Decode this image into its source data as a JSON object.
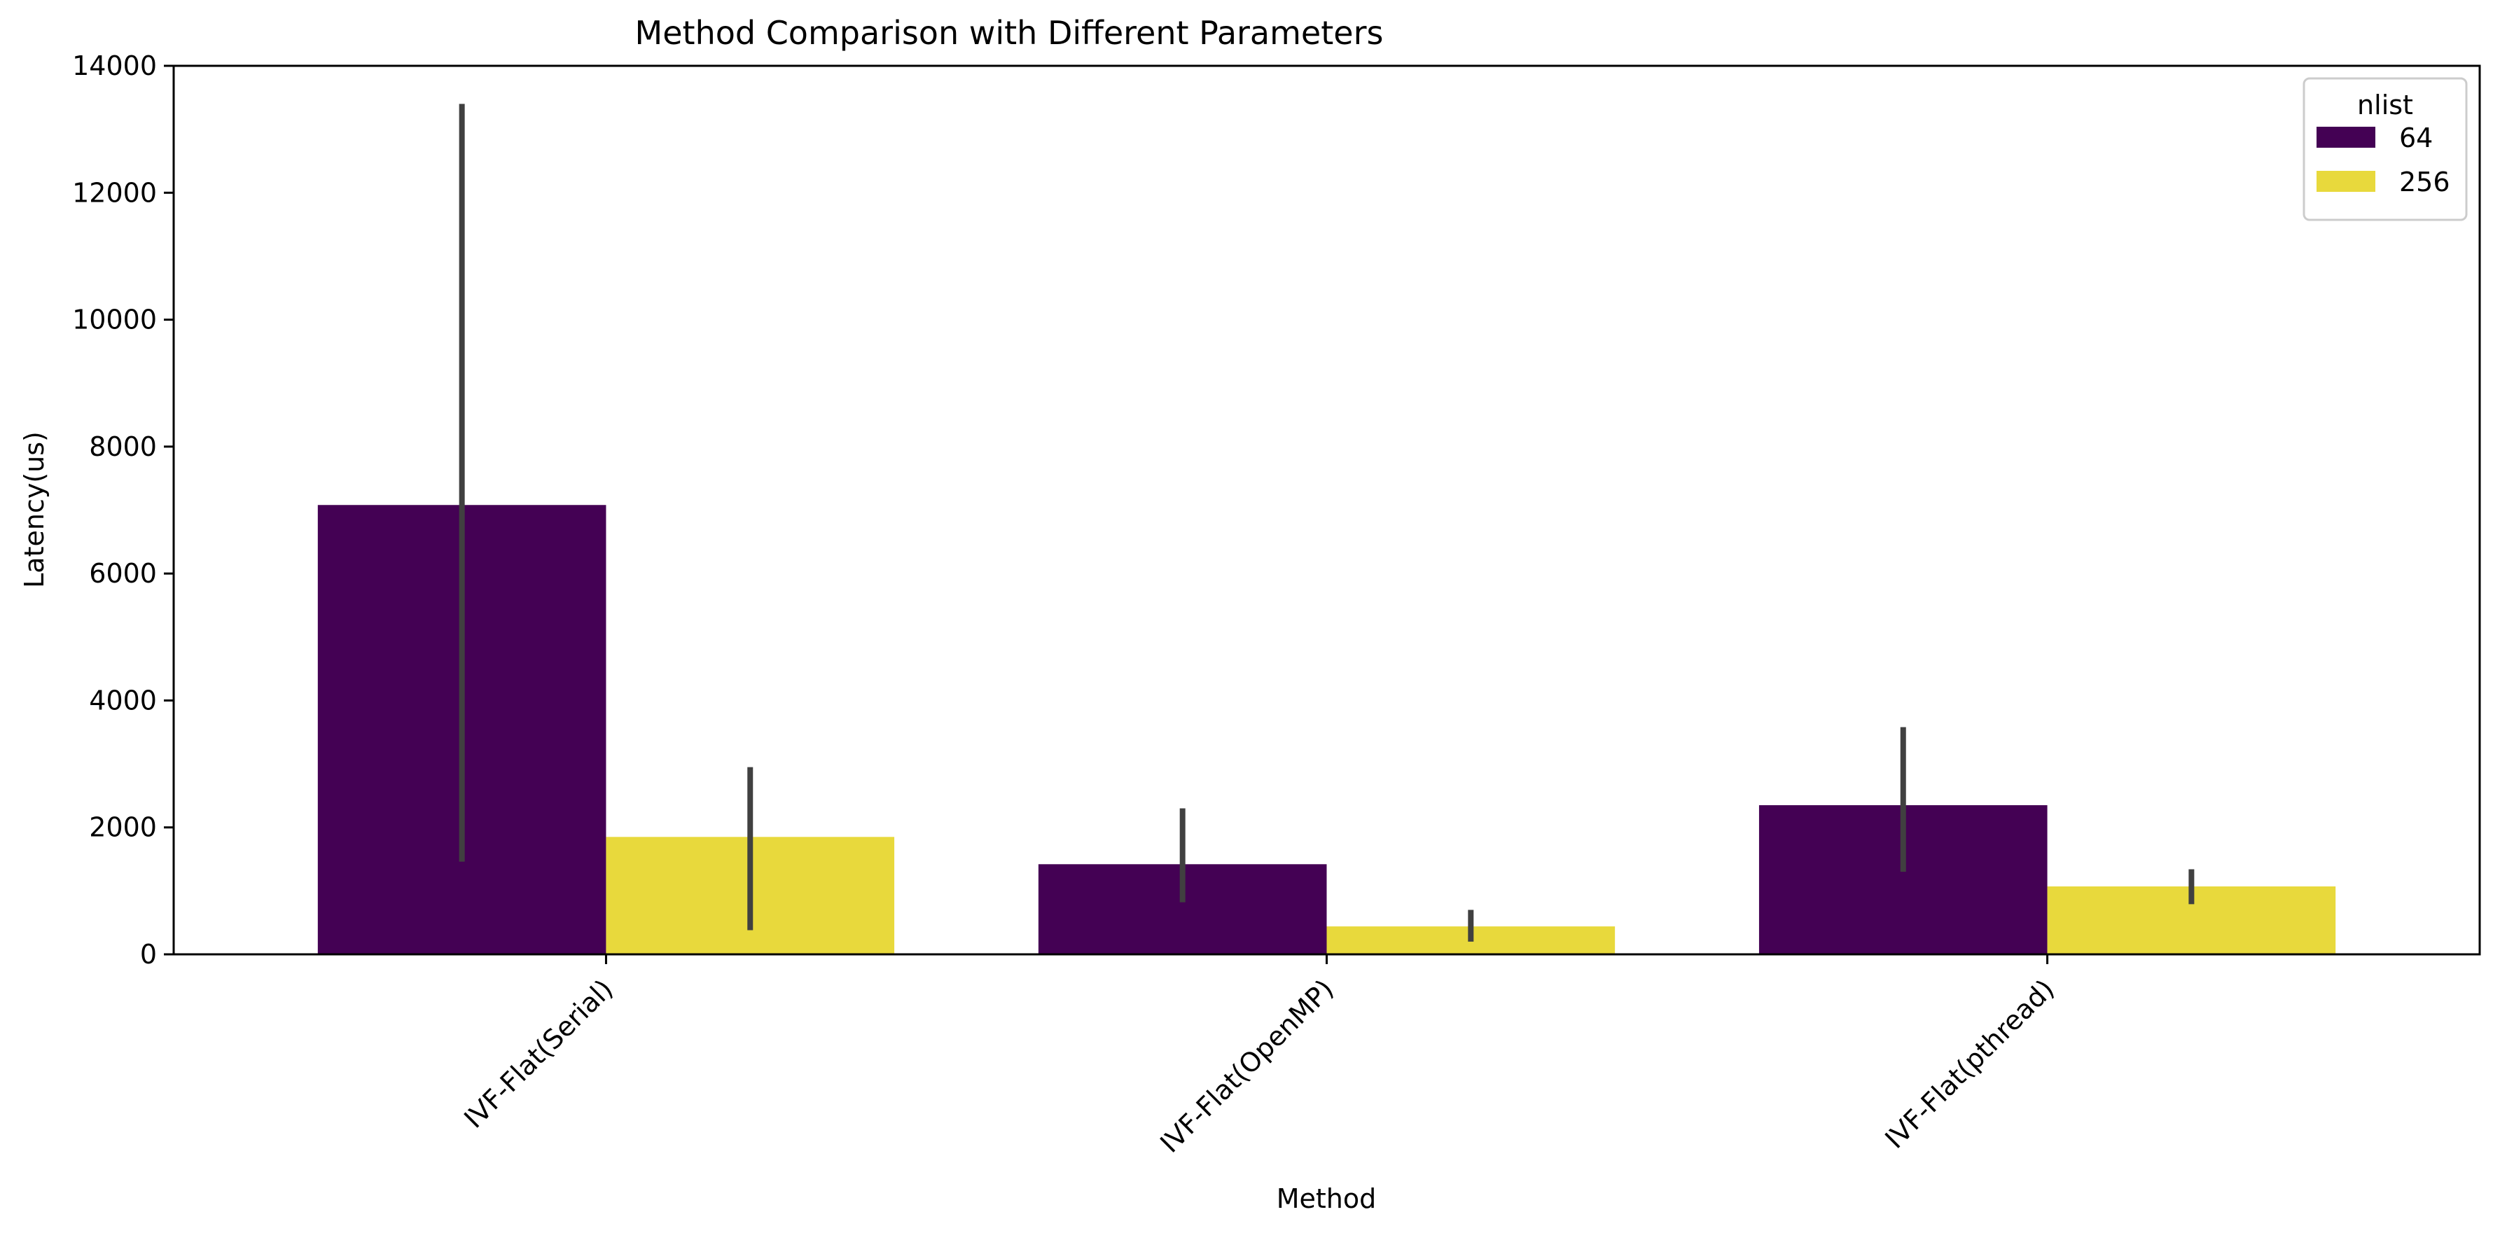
{
  "chart_data": {
    "type": "bar",
    "title": "Method Comparison with Different Parameters",
    "xlabel": "Method",
    "ylabel": "Latency(us)",
    "categories": [
      "IVF-Flat(Serial)",
      "IVF-Flat(OpenMP)",
      "IVF-Flat(pthread)"
    ],
    "ylim": [
      0,
      14000
    ],
    "yticks": [
      0,
      2000,
      4000,
      6000,
      8000,
      10000,
      12000,
      14000
    ],
    "legend": {
      "title": "nlist",
      "position": "upper right"
    },
    "grid": false,
    "series": [
      {
        "name": "64",
        "color": "#440154",
        "values": [
          7080,
          1420,
          2350
        ],
        "error_low": [
          1460,
          820,
          1300
        ],
        "error_high": [
          13400,
          2300,
          3580
        ]
      },
      {
        "name": "256",
        "color": "#E8D93C",
        "values": [
          1850,
          440,
          1070
        ],
        "error_low": [
          380,
          200,
          790
        ],
        "error_high": [
          2950,
          700,
          1340
        ]
      }
    ],
    "error_bar_color": "#404040"
  }
}
